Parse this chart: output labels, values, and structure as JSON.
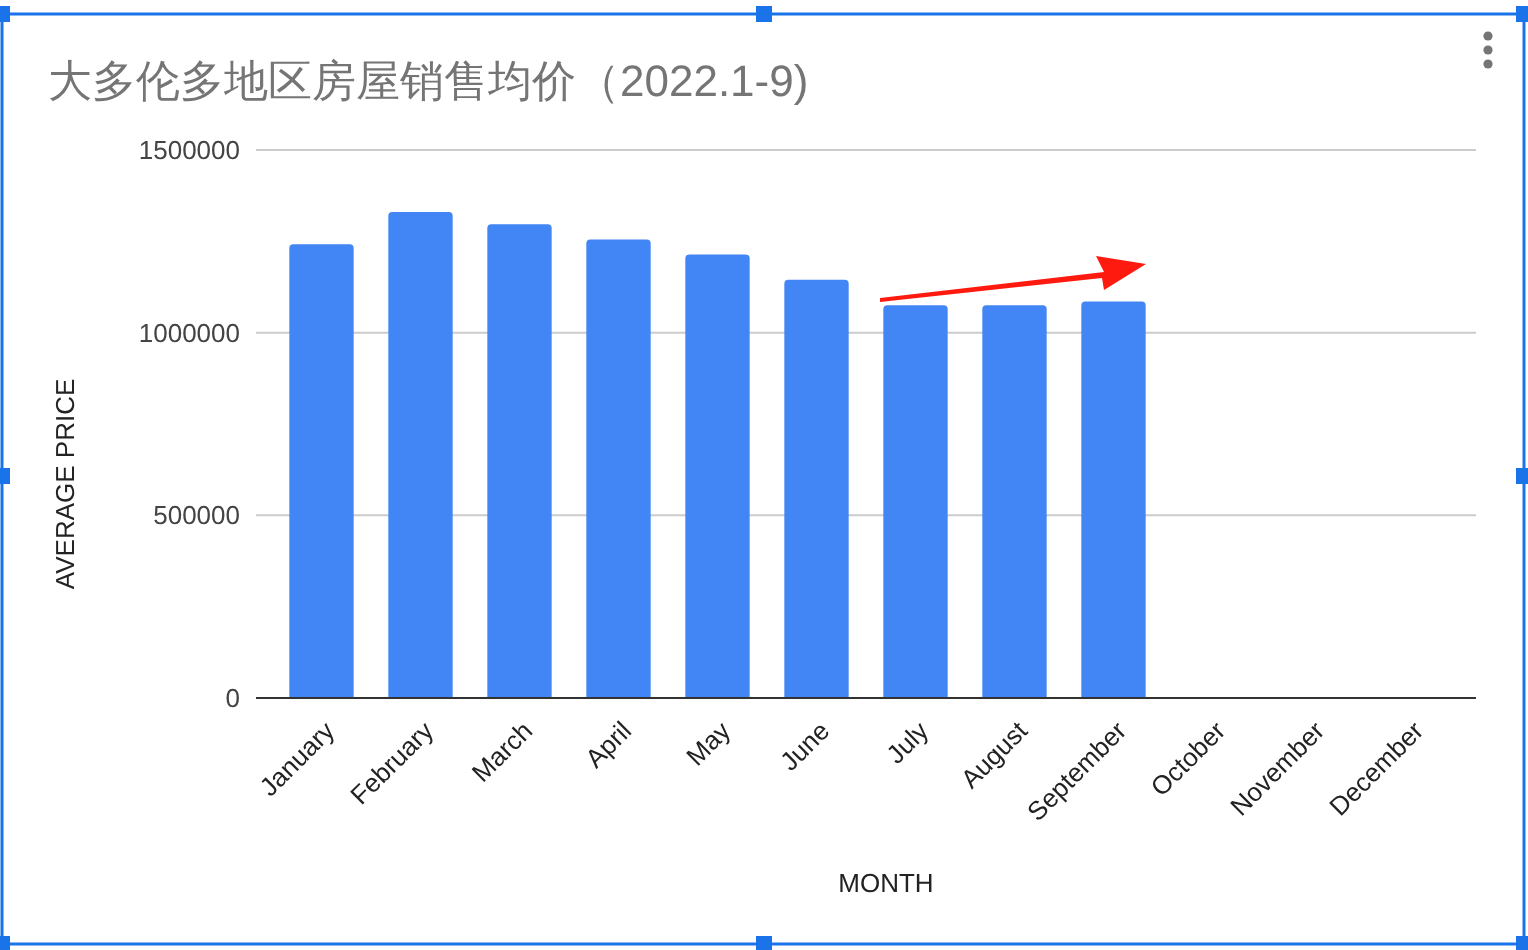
{
  "chart_data": {
    "type": "bar",
    "title": "大多伦多地区房屋销售均价（2022.1-9)",
    "xlabel": "MONTH",
    "ylabel": "AVERAGE PRICE",
    "categories": [
      "January",
      "February",
      "March",
      "April",
      "May",
      "June",
      "July",
      "August",
      "September",
      "October",
      "November",
      "December"
    ],
    "values": [
      1242000,
      1330000,
      1297000,
      1255000,
      1214000,
      1145000,
      1075000,
      1075000,
      1085000,
      null,
      null,
      null
    ],
    "color": "#4285f4",
    "ylim": [
      0,
      1500000
    ],
    "yticks": [
      0,
      500000,
      1000000,
      1500000
    ],
    "grid": "y"
  }
}
